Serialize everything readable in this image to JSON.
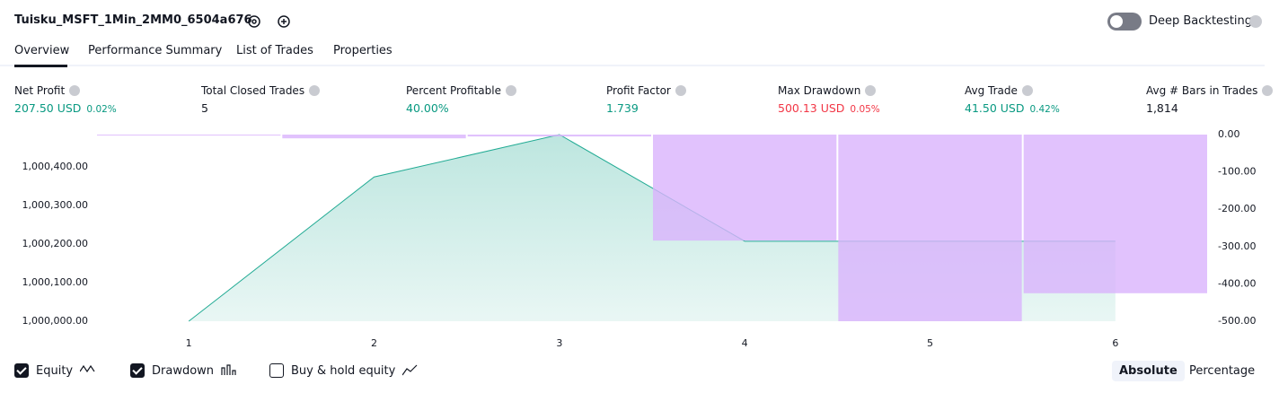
{
  "header": {
    "title": "Tuisku_MSFT_1Min_2MM0_6504a676",
    "toggle_label": "Deep Backtesting"
  },
  "tabs": [
    "Overview",
    "Performance Summary",
    "List of Trades",
    "Properties"
  ],
  "metrics": [
    {
      "label": "Net Profit",
      "value": "207.50 USD",
      "percent": "0.02%",
      "color": "#089981"
    },
    {
      "label": "Total Closed Trades",
      "value": "5",
      "color": "#131722"
    },
    {
      "label": "Percent Profitable",
      "value": "40.00%",
      "color": "#089981"
    },
    {
      "label": "Profit Factor",
      "value": "1.739",
      "color": "#089981"
    },
    {
      "label": "Max Drawdown",
      "value": "500.13 USD",
      "percent": "0.05%",
      "color": "#f23645"
    },
    {
      "label": "Avg Trade",
      "value": "41.50 USD",
      "percent": "0.42%",
      "color": "#089981"
    },
    {
      "label": "Avg # Bars in Trades",
      "value": "1,814",
      "color": "#131722"
    }
  ],
  "chart_data": {
    "type": "line",
    "x": [
      1,
      2,
      3,
      4,
      5,
      6
    ],
    "xlim": [
      0.5,
      6.5
    ],
    "xticks": [
      1,
      2,
      3,
      4,
      5,
      6
    ],
    "ylim": [
      1000000,
      1000484
    ],
    "yticks": [
      {
        "value": 1000000,
        "label": "1,000,000.00"
      },
      {
        "value": 1000100,
        "label": "1,000,100.00"
      },
      {
        "value": 1000200,
        "label": "1,000,200.00"
      },
      {
        "value": 1000300,
        "label": "1,000,300.00"
      },
      {
        "value": 1000400,
        "label": "1,000,400.00"
      }
    ],
    "y2lim": [
      -500,
      0
    ],
    "y2ticks": [
      {
        "value": 0,
        "label": "0.00"
      },
      {
        "value": -100,
        "label": "-100.00"
      },
      {
        "value": -200,
        "label": "-200.00"
      },
      {
        "value": -300,
        "label": "-300.00"
      },
      {
        "value": -400,
        "label": "-400.00"
      },
      {
        "value": -500,
        "label": "-500.00"
      }
    ],
    "series": [
      {
        "name": "Equity",
        "type": "area",
        "color": "#22ab94",
        "visible": true,
        "values": [
          1000000,
          1000374,
          1000484,
          1000207.5,
          1000207.5,
          1000207.5
        ]
      },
      {
        "name": "Drawdown",
        "type": "bar",
        "color": "#d9b3fc",
        "visible": true,
        "axis": "y2",
        "values": [
          -1,
          -10,
          -5,
          -284,
          -500,
          -425
        ]
      }
    ]
  },
  "options": [
    {
      "label": "Buy & hold equity",
      "checked": false
    }
  ],
  "buttons": [
    {
      "label": "Absolute",
      "active": true
    },
    {
      "label": "Percentage",
      "active": false
    }
  ]
}
